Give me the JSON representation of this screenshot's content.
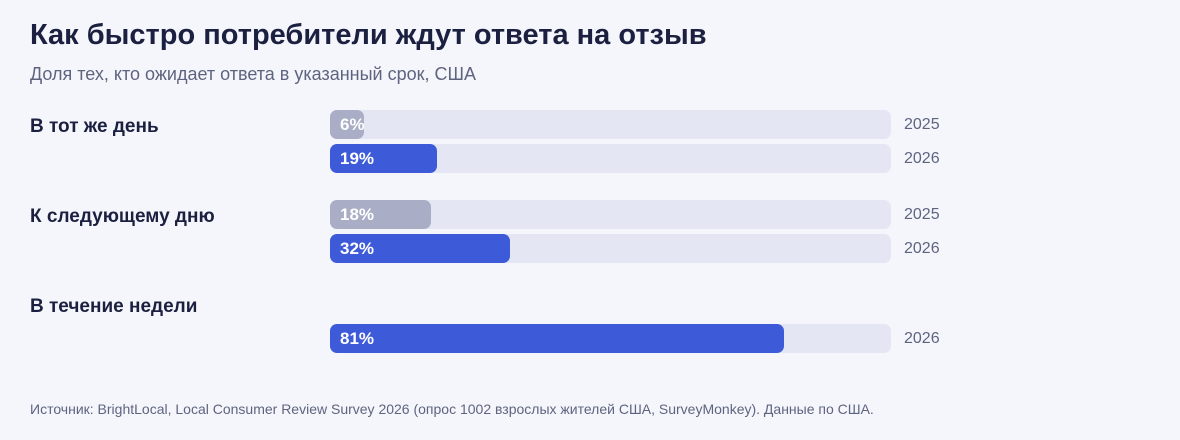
{
  "title": "Как быстро потребители ждут ответа на отзыв",
  "subtitle": "Доля тех, кто ожидает ответа в указанный срок, США",
  "source": "Источник: BrightLocal, Local Consumer Review Survey 2026 (опрос 1002 взрослых жителей США, SurveyMonkey). Данные по США.",
  "colors": {
    "series_2025": "#a9aec6",
    "series_2026": "#3d5bd9",
    "track": "#e4e6f4"
  },
  "chart_data": {
    "type": "bar",
    "orientation": "horizontal",
    "xlim": [
      0,
      100
    ],
    "unit": "%",
    "categories": [
      "В тот же день",
      "К следующему дню",
      "В течение недели"
    ],
    "series": [
      {
        "name": "2025",
        "values": [
          6,
          18,
          null
        ]
      },
      {
        "name": "2026",
        "values": [
          19,
          32,
          81
        ]
      }
    ]
  }
}
